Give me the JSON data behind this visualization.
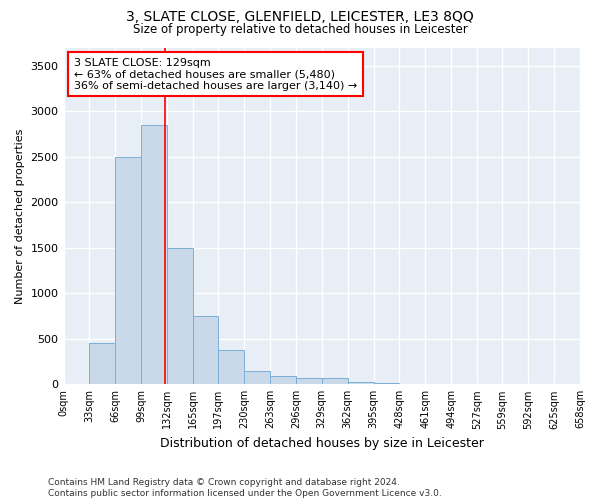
{
  "title": "3, SLATE CLOSE, GLENFIELD, LEICESTER, LE3 8QQ",
  "subtitle": "Size of property relative to detached houses in Leicester",
  "xlabel": "Distribution of detached houses by size in Leicester",
  "ylabel": "Number of detached properties",
  "bar_color": "#c9d9ea",
  "bar_edge_color": "#7bafd4",
  "bin_edges": [
    0,
    33,
    66,
    99,
    132,
    165,
    197,
    230,
    263,
    296,
    329,
    362,
    395,
    428,
    461,
    494,
    527,
    559,
    592,
    625,
    658
  ],
  "bar_heights": [
    5,
    450,
    2500,
    2850,
    1500,
    750,
    380,
    150,
    90,
    70,
    70,
    30,
    10,
    5,
    3,
    2,
    1,
    1,
    1,
    0
  ],
  "red_line_x": 129,
  "ylim": [
    0,
    3700
  ],
  "yticks": [
    0,
    500,
    1000,
    1500,
    2000,
    2500,
    3000,
    3500
  ],
  "annotation_text": "3 SLATE CLOSE: 129sqm\n← 63% of detached houses are smaller (5,480)\n36% of semi-detached houses are larger (3,140) →",
  "annotation_box_color": "white",
  "annotation_box_edge_color": "red",
  "footer_text": "Contains HM Land Registry data © Crown copyright and database right 2024.\nContains public sector information licensed under the Open Government Licence v3.0.",
  "fig_background_color": "#ffffff",
  "plot_background_color": "#e8eef5",
  "grid_color": "#ffffff",
  "tick_labels": [
    "0sqm",
    "33sqm",
    "66sqm",
    "99sqm",
    "132sqm",
    "165sqm",
    "197sqm",
    "230sqm",
    "263sqm",
    "296sqm",
    "329sqm",
    "362sqm",
    "395sqm",
    "428sqm",
    "461sqm",
    "494sqm",
    "527sqm",
    "559sqm",
    "592sqm",
    "625sqm",
    "658sqm"
  ]
}
